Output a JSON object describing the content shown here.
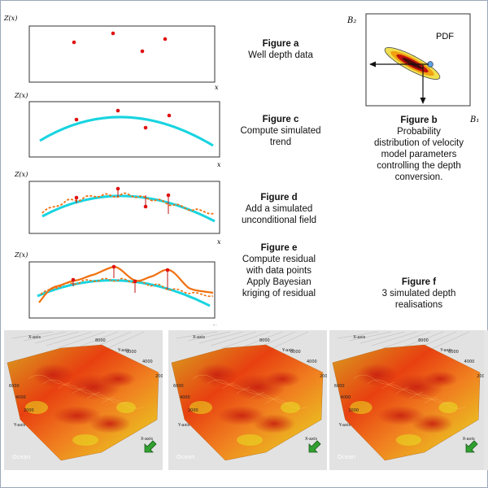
{
  "figure_a": {
    "title": "Figure a",
    "lines": [
      "Well depth data"
    ],
    "y_axis": "Z(x)",
    "x_axis": "x"
  },
  "figure_b": {
    "title": "Figure b",
    "lines": [
      "Probability",
      "distribution of velocity",
      "model parameters",
      "controlling the depth",
      "conversion."
    ],
    "pdf_label": "PDF",
    "y_axis": "B₂",
    "x_axis": "B₁"
  },
  "figure_c": {
    "title": "Figure c",
    "lines": [
      "Compute simulated",
      "trend"
    ],
    "y_axis": "Z(x)",
    "x_axis": "x"
  },
  "figure_d": {
    "title": "Figure d",
    "lines": [
      "Add a simulated",
      "unconditional field"
    ],
    "y_axis": "Z(x)",
    "x_axis": "x"
  },
  "figure_e": {
    "title": "Figure e",
    "lines": [
      "Compute residual",
      "with data points",
      "Apply Bayesian",
      "kriging of residual"
    ],
    "y_axis": "Z(x)",
    "x_axis": "x"
  },
  "figure_f": {
    "title": "Figure f",
    "lines": [
      "3 simulated depth",
      "realisations"
    ]
  },
  "renderings": [
    {
      "x_axis": "X-axis",
      "y_axis": "Y-axis",
      "ticks": [
        "6000",
        "4000",
        "2000",
        "8000",
        "6000",
        "4000",
        "2000"
      ],
      "watermark": "Ocean"
    },
    {
      "x_axis": "X-axis",
      "y_axis": "Y-axis",
      "ticks": [
        "6000",
        "4000",
        "2000",
        "8000",
        "6000",
        "4000",
        "2000"
      ],
      "watermark": "Ocean"
    },
    {
      "x_axis": "X-axis",
      "y_axis": "Y-axis",
      "ticks": [
        "6000",
        "4000",
        "2000",
        "8000",
        "6000",
        "4000",
        "2000"
      ],
      "watermark": "Ocean"
    }
  ],
  "colors": {
    "data_point": "#e01010",
    "trend": "#18d4e0",
    "unconditional_field": "#f07010",
    "surface_high": "#e84010",
    "surface_low": "#e8e020",
    "arrow_icon": "#30a030"
  }
}
